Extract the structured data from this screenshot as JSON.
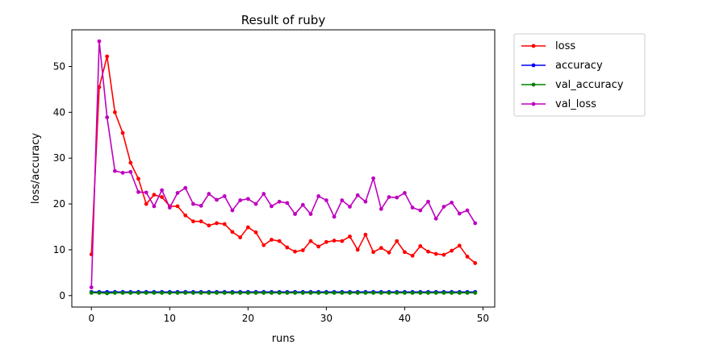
{
  "chart_data": {
    "type": "line",
    "title": "Result of ruby",
    "xlabel": "runs",
    "ylabel": "loss/accuracy",
    "xlim": [
      -2.5,
      51.5
    ],
    "ylim": [
      -2.5,
      58.0
    ],
    "xticks": [
      0,
      10,
      20,
      30,
      40,
      50
    ],
    "yticks": [
      0,
      10,
      20,
      30,
      40,
      50
    ],
    "grid": false,
    "legend_placement": "outside upper right",
    "x": [
      0,
      1,
      2,
      3,
      4,
      5,
      6,
      7,
      8,
      9,
      10,
      11,
      12,
      13,
      14,
      15,
      16,
      17,
      18,
      19,
      20,
      21,
      22,
      23,
      24,
      25,
      26,
      27,
      28,
      29,
      30,
      31,
      32,
      33,
      34,
      35,
      36,
      37,
      38,
      39,
      40,
      41,
      42,
      43,
      44,
      45,
      46,
      47,
      48,
      49
    ],
    "series": [
      {
        "name": "loss",
        "color": "#ff0000",
        "values": [
          9.0,
          45.5,
          52.2,
          40.0,
          35.5,
          29.0,
          25.5,
          20.0,
          22.0,
          21.5,
          19.5,
          19.5,
          17.5,
          16.2,
          16.2,
          15.3,
          15.8,
          15.6,
          13.9,
          12.7,
          14.9,
          13.8,
          11.0,
          12.2,
          11.9,
          10.5,
          9.6,
          9.9,
          11.9,
          10.7,
          11.7,
          12.0,
          11.9,
          12.9,
          10.0,
          13.3,
          9.5,
          10.4,
          9.4,
          11.9,
          9.5,
          8.7,
          10.8,
          9.6,
          9.1,
          8.9,
          9.8,
          10.9,
          8.5,
          7.1
        ]
      },
      {
        "name": "accuracy",
        "color": "#0000ff",
        "values": [
          0.8,
          0.8,
          0.8,
          0.8,
          0.8,
          0.8,
          0.8,
          0.8,
          0.8,
          0.8,
          0.8,
          0.8,
          0.8,
          0.8,
          0.8,
          0.8,
          0.8,
          0.8,
          0.8,
          0.8,
          0.8,
          0.8,
          0.8,
          0.8,
          0.8,
          0.8,
          0.8,
          0.8,
          0.8,
          0.8,
          0.8,
          0.8,
          0.8,
          0.8,
          0.8,
          0.8,
          0.8,
          0.8,
          0.8,
          0.8,
          0.8,
          0.8,
          0.8,
          0.8,
          0.8,
          0.8,
          0.8,
          0.8,
          0.8,
          0.8
        ]
      },
      {
        "name": "val_accuracy",
        "color": "#008000",
        "values": [
          0.6,
          0.6,
          0.5,
          0.6,
          0.6,
          0.6,
          0.6,
          0.6,
          0.6,
          0.6,
          0.6,
          0.6,
          0.6,
          0.6,
          0.6,
          0.6,
          0.6,
          0.6,
          0.6,
          0.6,
          0.6,
          0.6,
          0.6,
          0.6,
          0.6,
          0.6,
          0.6,
          0.6,
          0.6,
          0.6,
          0.6,
          0.6,
          0.6,
          0.6,
          0.6,
          0.6,
          0.6,
          0.6,
          0.6,
          0.6,
          0.6,
          0.6,
          0.6,
          0.6,
          0.6,
          0.6,
          0.6,
          0.6,
          0.6,
          0.6
        ]
      },
      {
        "name": "val_loss",
        "color": "#bf00bf",
        "values": [
          1.8,
          55.5,
          38.9,
          27.2,
          26.8,
          27.0,
          22.6,
          22.5,
          19.5,
          23.0,
          19.2,
          22.4,
          23.5,
          20.0,
          19.6,
          22.2,
          20.9,
          21.7,
          18.6,
          20.8,
          21.1,
          20.0,
          22.2,
          19.5,
          20.5,
          20.2,
          17.8,
          19.8,
          17.8,
          21.7,
          20.8,
          17.2,
          20.8,
          19.4,
          21.9,
          20.5,
          25.6,
          18.9,
          21.5,
          21.4,
          22.4,
          19.2,
          18.6,
          20.5,
          16.8,
          19.4,
          20.3,
          17.9,
          18.6,
          15.8
        ]
      }
    ]
  }
}
